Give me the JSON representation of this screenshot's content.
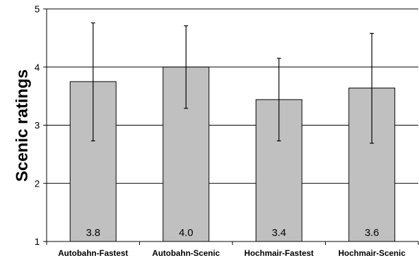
{
  "chart_data": {
    "type": "bar",
    "ylabel": "Scenic ratings",
    "xlabel": "",
    "ylim": [
      1,
      5
    ],
    "yticks": [
      1,
      2,
      3,
      4,
      5
    ],
    "grid": "horizontal",
    "categories": [
      "Autobahn-Fastest",
      "Autobahn-Scenic",
      "Hochmair-Fastest",
      "Hochmair-Scenic"
    ],
    "values": [
      3.75,
      4.0,
      3.44,
      3.64
    ],
    "value_labels": [
      "3.8",
      "4.0",
      "3.4",
      "3.6"
    ],
    "error_bars": [
      {
        "low": 2.73,
        "high": 4.76
      },
      {
        "low": 3.29,
        "high": 4.71
      },
      {
        "low": 2.73,
        "high": 4.15
      },
      {
        "low": 2.69,
        "high": 4.58
      }
    ],
    "colors": {
      "bar_fill": "#c0c0c0",
      "bar_stroke": "#000000",
      "grid": "#000000",
      "axis": "#000000"
    }
  }
}
